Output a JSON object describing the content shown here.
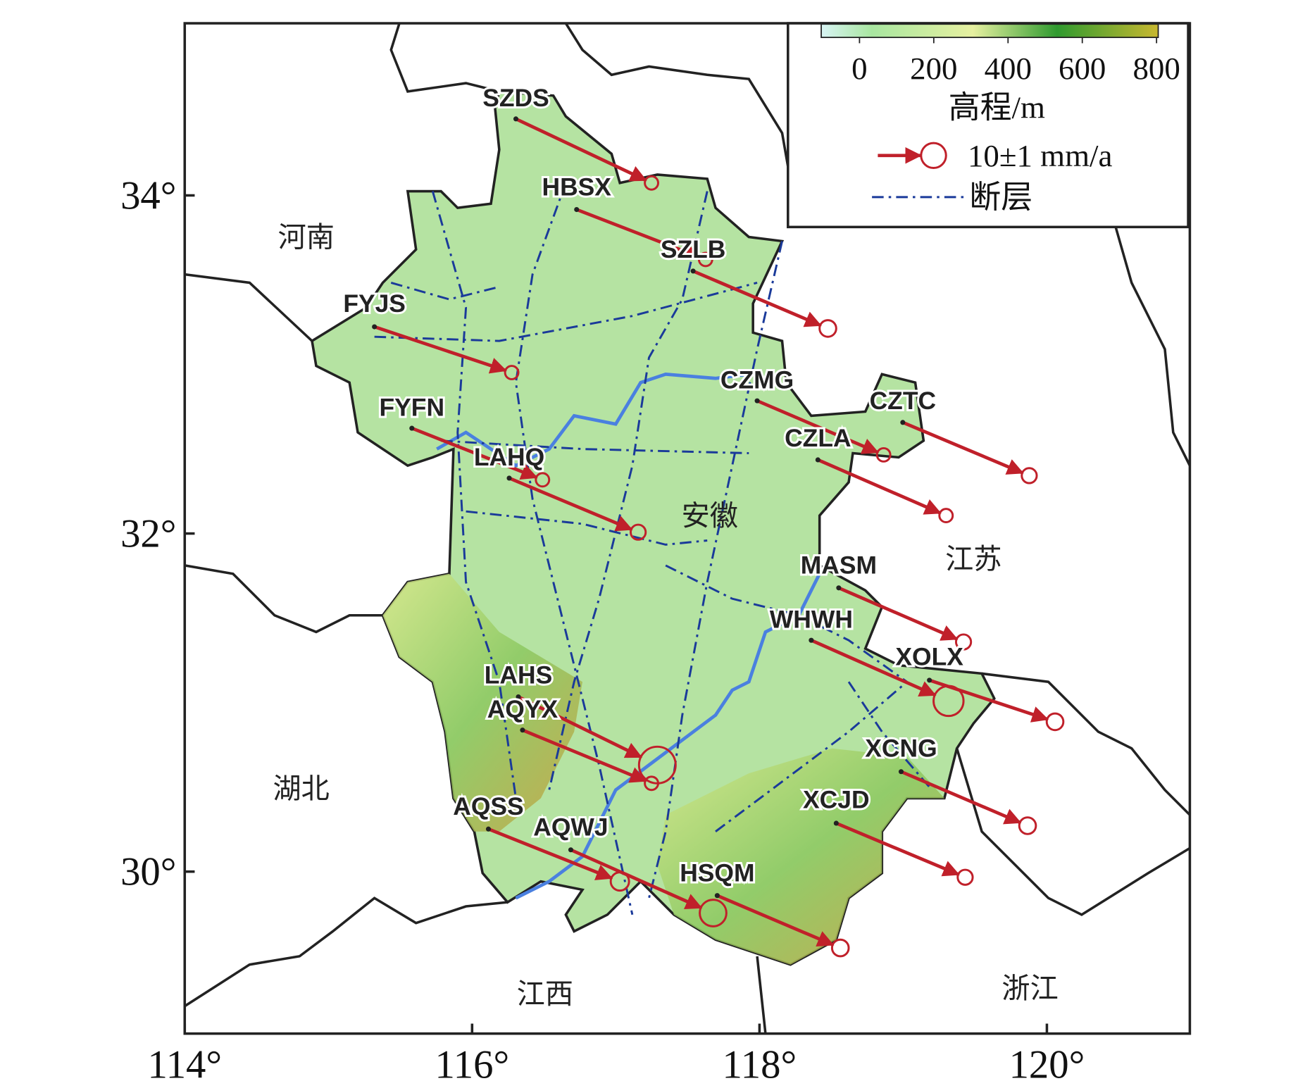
{
  "map": {
    "xticks": [
      {
        "value": 114,
        "label": "114°"
      },
      {
        "value": 116,
        "label": "116°"
      },
      {
        "value": 118,
        "label": "118°"
      },
      {
        "value": 120,
        "label": "120°"
      }
    ],
    "yticks": [
      {
        "value": 30,
        "label": "30°"
      },
      {
        "value": 32,
        "label": "32°"
      },
      {
        "value": 34,
        "label": "34°"
      }
    ],
    "provinces": [
      "河南",
      "安徽",
      "江苏",
      "湖北",
      "江西",
      "浙江"
    ],
    "stations": [
      "SZDS",
      "HBSX",
      "SZLB",
      "FYJS",
      "FYFN",
      "LAHQ",
      "CZMG",
      "CZTC",
      "CZLA",
      "MASM",
      "WHWH",
      "XOLX",
      "LAHS",
      "AQYX",
      "XCNG",
      "XCJD",
      "AQSS",
      "AQWJ",
      "HSQM"
    ],
    "legend": {
      "colorbar_title": "高程/m",
      "colorbar_ticks": [
        0,
        200,
        400,
        600,
        800
      ],
      "velocity_label": "10±1 mm/a",
      "fault_label": "断层"
    }
  }
}
